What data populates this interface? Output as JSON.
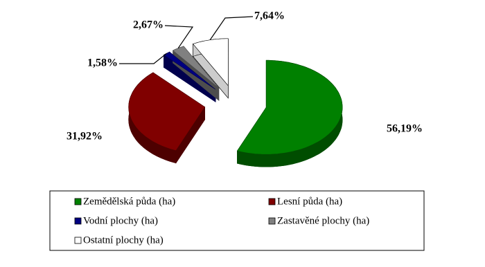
{
  "chart_data": {
    "type": "pie3d",
    "categories": [
      "Zemědělská půda (ha)",
      "Lesní půda (ha)",
      "Vodní plochy (ha)",
      "Zastavěné plochy (ha)",
      "Ostatní plochy (ha)"
    ],
    "values": [
      56.19,
      31.92,
      1.58,
      2.67,
      7.64
    ],
    "value_labels": [
      "56,19%",
      "31,92%",
      "1,58%",
      "2,67%",
      "7,64%"
    ],
    "colors": [
      "#008000",
      "#800000",
      "#000080",
      "#808080",
      "#ffffff"
    ],
    "legend": "bottom"
  }
}
